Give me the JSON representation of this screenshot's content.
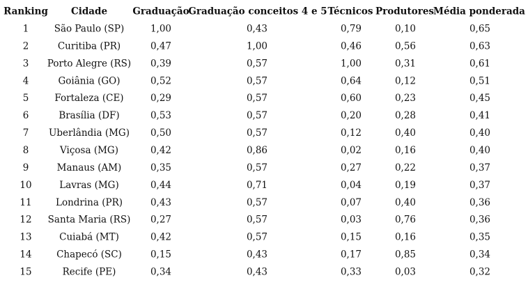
{
  "table": {
    "header": [
      "Ranking",
      "Cidade",
      "Graduação",
      "Graduação conceitos 4 e 5",
      "Técnicos",
      "Produtores",
      "Média ponderada"
    ],
    "rows": [
      [
        "1",
        "São Paulo (SP)",
        "1,00",
        "0,43",
        "0,79",
        "0,10",
        "0,65"
      ],
      [
        "2",
        "Curitiba (PR)",
        "0,47",
        "1,00",
        "0,46",
        "0,56",
        "0,63"
      ],
      [
        "3",
        "Porto Alegre (RS)",
        "0,39",
        "0,57",
        "1,00",
        "0,31",
        "0,61"
      ],
      [
        "4",
        "Goiânia (GO)",
        "0,52",
        "0,57",
        "0,64",
        "0,12",
        "0,51"
      ],
      [
        "5",
        "Fortaleza (CE)",
        "0,29",
        "0,57",
        "0,60",
        "0,23",
        "0,45"
      ],
      [
        "6",
        "Brasília (DF)",
        "0,53",
        "0,57",
        "0,20",
        "0,28",
        "0,41"
      ],
      [
        "7",
        "Uberlândia (MG)",
        "0,50",
        "0,57",
        "0,12",
        "0,40",
        "0,40"
      ],
      [
        "8",
        "Viçosa (MG)",
        "0,42",
        "0,86",
        "0,02",
        "0,16",
        "0,40"
      ],
      [
        "9",
        "Manaus (AM)",
        "0,35",
        "0,57",
        "0,27",
        "0,22",
        "0,37"
      ],
      [
        "10",
        "Lavras (MG)",
        "0,44",
        "0,71",
        "0,04",
        "0,19",
        "0,37"
      ],
      [
        "11",
        "Londrina (PR)",
        "0,43",
        "0,57",
        "0,07",
        "0,40",
        "0,36"
      ],
      [
        "12",
        "Santa Maria (RS)",
        "0,27",
        "0,57",
        "0,03",
        "0,76",
        "0,36"
      ],
      [
        "13",
        "Cuiabá (MT)",
        "0,42",
        "0,57",
        "0,15",
        "0,16",
        "0,35"
      ],
      [
        "14",
        "Chapecó (SC)",
        "0,15",
        "0,43",
        "0,17",
        "0,85",
        "0,34"
      ],
      [
        "15",
        "Recife (PE)",
        "0,34",
        "0,43",
        "0,33",
        "0,03",
        "0,32"
      ]
    ]
  }
}
